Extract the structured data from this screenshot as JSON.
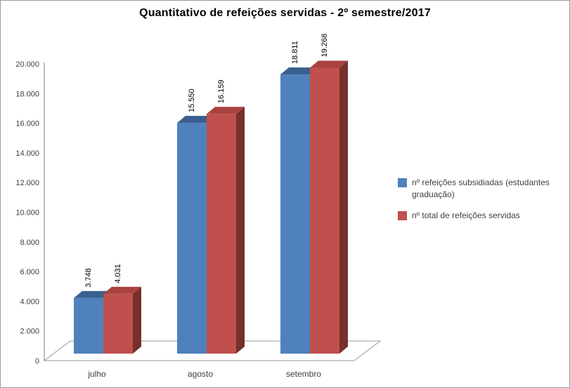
{
  "title": "Quantitativo de refeições servidas - 2º semestre/2017",
  "chart_data": {
    "type": "bar",
    "effect": "3d-clustered-column",
    "title": "Quantitativo de refeições servidas - 2º semestre/2017",
    "categories": [
      "julho",
      "agosto",
      "setembro"
    ],
    "series": [
      {
        "name": "nº refeições subsidiadas (estudantes graduação)",
        "color": "#4F81BD",
        "top_color": "#3A608F",
        "values": [
          3748,
          15550,
          18811
        ],
        "value_labels": [
          "3.748",
          "15.550",
          "18.811"
        ]
      },
      {
        "name": "nº total de refeições servidas",
        "color": "#C0504D",
        "top_color": "#AA4340",
        "side_color": "#76302D",
        "values": [
          4031,
          16159,
          19268
        ],
        "value_labels": [
          "4.031",
          "16.159",
          "19.268"
        ]
      }
    ],
    "ylim": [
      0,
      20000
    ],
    "ytick_step": 2000,
    "ytick_labels": [
      "0",
      "2.000",
      "4.000",
      "6.000",
      "8.000",
      "10.000",
      "12.000",
      "14.000",
      "16.000",
      "18.000",
      "20.000"
    ],
    "grid": false,
    "legend_position": "right",
    "value_label_rotation": -90
  },
  "legend": {
    "entries": [
      {
        "marker_color": "#4F81BD",
        "lines": [
          "nº refeições subsidiadas (estudantes",
          "graduação)"
        ]
      },
      {
        "marker_color": "#C0504D",
        "lines": [
          "nº total de refeições servidas"
        ]
      }
    ]
  },
  "colors": {
    "background": "#FFFFFF",
    "border": "#9A9A9A",
    "axis_line": "#9A9A9A",
    "axis_text": "#3F3F3F",
    "data_label_text": "#000000"
  }
}
